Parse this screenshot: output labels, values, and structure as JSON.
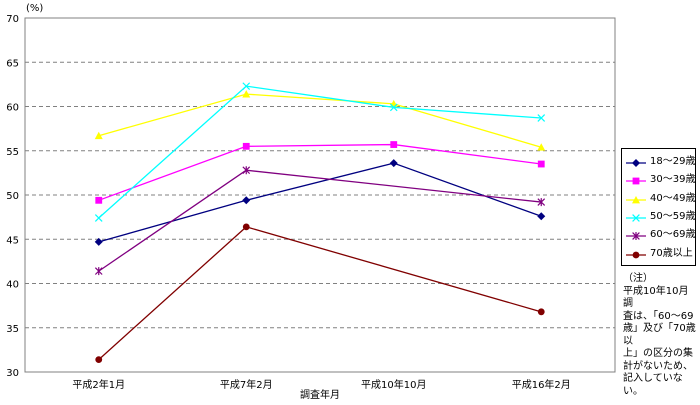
{
  "chart_data": {
    "type": "line",
    "title": "",
    "xlabel": "調査年月",
    "ylabel": "(%)",
    "ylim": [
      30,
      70
    ],
    "yticks": [
      30,
      35,
      40,
      45,
      50,
      55,
      60,
      65,
      70
    ],
    "grid": true,
    "legend_position": "right",
    "categories": [
      "平成2年1月",
      "平成7年2月",
      "平成10年10月",
      "平成16年2月"
    ],
    "series": [
      {
        "name": "18～29歳",
        "color": "#000080",
        "marker": "diamond",
        "values": [
          44.7,
          49.4,
          53.6,
          47.6
        ]
      },
      {
        "name": "30～39歳",
        "color": "#ff00ff",
        "marker": "square",
        "values": [
          49.4,
          55.5,
          55.7,
          53.5
        ]
      },
      {
        "name": "40～49歳",
        "color": "#ffff00",
        "marker": "triangle",
        "values": [
          56.7,
          61.4,
          60.3,
          55.4
        ]
      },
      {
        "name": "50～59歳",
        "color": "#00ffff",
        "marker": "x",
        "values": [
          47.4,
          62.3,
          59.9,
          58.7
        ]
      },
      {
        "name": "60～69歳",
        "color": "#800080",
        "marker": "star",
        "values": [
          41.4,
          52.8,
          null,
          49.2
        ]
      },
      {
        "name": "70歳以上",
        "color": "#800000",
        "marker": "circle",
        "values": [
          31.4,
          46.4,
          null,
          36.8
        ]
      }
    ]
  },
  "note": {
    "head": "（注）",
    "body": "平成10年10月調\n査は、「60～69\n歳」及び「70歳以\n上」の区分の集\n計がないため、\n記入していな\nい。"
  }
}
